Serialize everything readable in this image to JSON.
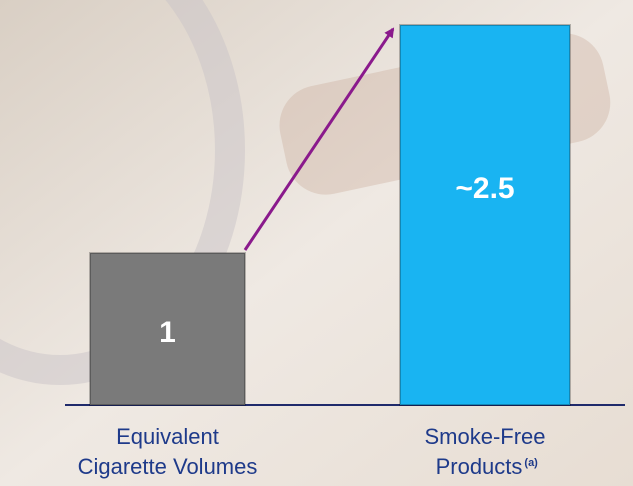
{
  "chart_data": {
    "type": "bar",
    "categories": [
      [
        "Equivalent",
        "Cigarette Volumes"
      ],
      [
        "Smoke-Free",
        "Products"
      ]
    ],
    "category_superscripts": [
      null,
      "(a)"
    ],
    "values": [
      1,
      2.5
    ],
    "value_labels": [
      "1",
      "~2.5"
    ],
    "colors": [
      "#7a7a7a",
      "#19b4f2"
    ],
    "arrow_color": "#8a1a8c"
  }
}
